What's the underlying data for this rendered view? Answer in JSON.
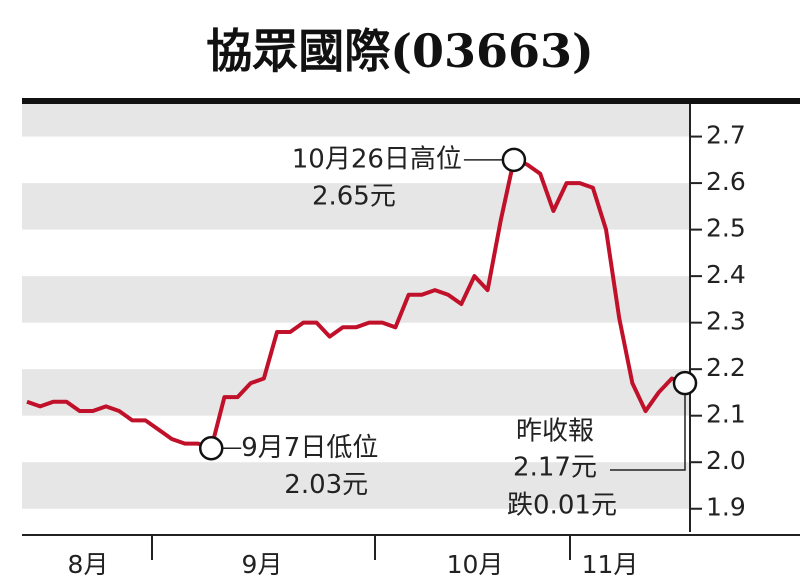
{
  "chart_data": {
    "type": "line",
    "title": "協眾國際(03663)",
    "categories": [
      null,
      null,
      null,
      null,
      null,
      null,
      null,
      null,
      null,
      null,
      null,
      null,
      null,
      null,
      null,
      null,
      null,
      null,
      null,
      null,
      null,
      null,
      null,
      null,
      null,
      null,
      null,
      null,
      null,
      null,
      null,
      null,
      null,
      null,
      null,
      null,
      null,
      null,
      null,
      null,
      null,
      null,
      null,
      null,
      null,
      null,
      null,
      null,
      null,
      null,
      null
    ],
    "values": [
      2.13,
      2.12,
      2.13,
      2.13,
      2.11,
      2.11,
      2.12,
      2.11,
      2.09,
      2.09,
      2.07,
      2.05,
      2.04,
      2.04,
      2.03,
      2.14,
      2.14,
      2.17,
      2.18,
      2.28,
      2.28,
      2.3,
      2.3,
      2.27,
      2.29,
      2.29,
      2.3,
      2.3,
      2.29,
      2.36,
      2.36,
      2.37,
      2.36,
      2.34,
      2.4,
      2.37,
      2.52,
      2.65,
      2.64,
      2.62,
      2.54,
      2.6,
      2.6,
      2.59,
      2.5,
      2.31,
      2.17,
      2.11,
      2.15,
      2.18,
      2.17
    ],
    "color": "#c0102a",
    "month_labels": [
      "8月",
      "9月",
      "10月",
      "11月"
    ],
    "ylim": [
      1.85,
      2.77
    ],
    "yticks": [
      2.7,
      2.6,
      2.5,
      2.4,
      2.3,
      2.2,
      2.1,
      {
        "value": 2,
        "label": "2.0"
      },
      1.9
    ],
    "annotations": {
      "high": [
        "10月26日高位",
        "2.65元"
      ],
      "low": [
        "9月7日低位",
        "2.03元"
      ],
      "last": [
        "昨收報",
        "2.17元",
        "跌0.01元"
      ]
    }
  }
}
